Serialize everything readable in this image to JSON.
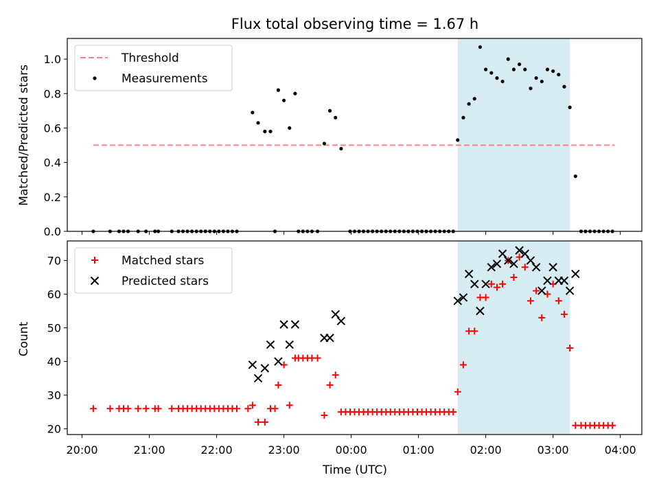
{
  "figure": {
    "title": "Flux total observing time = 1.67 h",
    "xlabel": "Time (UTC)",
    "xticks": [
      "20:00",
      "21:00",
      "22:00",
      "23:00",
      "00:00",
      "01:00",
      "02:00",
      "03:00",
      "04:00"
    ],
    "colors": {
      "threshold": "#ff8080",
      "measurement": "#000000",
      "matched": "#ff0000",
      "predicted": "#000000",
      "highlight": "#add8e6"
    }
  },
  "chart_data": [
    {
      "type": "scatter",
      "ylabel": "Matched/Predicted stars",
      "ylim": [
        0,
        1.12
      ],
      "yticks": [
        "0.0",
        "0.2",
        "0.4",
        "0.6",
        "0.8",
        "1.0"
      ],
      "xlim_hours": [
        19.78,
        28.32
      ],
      "highlight_span": [
        "01:35",
        "03:15"
      ],
      "legend": {
        "location": "upper left",
        "entries": [
          "Threshold",
          "Measurements"
        ]
      },
      "threshold": {
        "name": "Threshold",
        "value": 0.5,
        "x_range": [
          "20:10",
          "03:55"
        ]
      },
      "series": [
        {
          "name": "Measurements",
          "points": [
            [
              "20:10",
              0
            ],
            [
              "20:25",
              0
            ],
            [
              "20:33",
              0
            ],
            [
              "20:37",
              0
            ],
            [
              "20:41",
              0
            ],
            [
              "20:50",
              0
            ],
            [
              "20:57",
              0
            ],
            [
              "21:05",
              0
            ],
            [
              "21:08",
              0
            ],
            [
              "21:20",
              0
            ],
            [
              "21:26",
              0
            ],
            [
              "21:30",
              0
            ],
            [
              "21:34",
              0
            ],
            [
              "21:38",
              0
            ],
            [
              "21:42",
              0
            ],
            [
              "21:46",
              0
            ],
            [
              "21:50",
              0
            ],
            [
              "21:54",
              0
            ],
            [
              "21:58",
              0
            ],
            [
              "22:02",
              0
            ],
            [
              "22:06",
              0
            ],
            [
              "22:10",
              0
            ],
            [
              "22:14",
              0
            ],
            [
              "22:18",
              0
            ],
            [
              "22:32",
              0.69
            ],
            [
              "22:37",
              0.63
            ],
            [
              "22:43",
              0.58
            ],
            [
              "22:48",
              0.58
            ],
            [
              "22:52",
              0
            ],
            [
              "22:55",
              0.82
            ],
            [
              "23:00",
              0.76
            ],
            [
              "23:05",
              0.6
            ],
            [
              "23:10",
              0.8
            ],
            [
              "23:13",
              0
            ],
            [
              "23:17",
              0
            ],
            [
              "23:21",
              0
            ],
            [
              "23:25",
              0
            ],
            [
              "23:30",
              0
            ],
            [
              "23:36",
              0.51
            ],
            [
              "23:41",
              0.7
            ],
            [
              "23:46",
              0.66
            ],
            [
              "23:51",
              0.48
            ],
            [
              "23:59",
              0
            ],
            [
              "00:03",
              0
            ],
            [
              "00:07",
              0
            ],
            [
              "00:11",
              0
            ],
            [
              "00:15",
              0
            ],
            [
              "00:19",
              0
            ],
            [
              "00:23",
              0
            ],
            [
              "00:27",
              0
            ],
            [
              "00:31",
              0
            ],
            [
              "00:35",
              0
            ],
            [
              "00:39",
              0
            ],
            [
              "00:43",
              0
            ],
            [
              "00:47",
              0
            ],
            [
              "00:51",
              0
            ],
            [
              "00:55",
              0
            ],
            [
              "00:59",
              0
            ],
            [
              "01:03",
              0
            ],
            [
              "01:07",
              0
            ],
            [
              "01:11",
              0
            ],
            [
              "01:15",
              0
            ],
            [
              "01:19",
              0
            ],
            [
              "01:23",
              0
            ],
            [
              "01:27",
              0
            ],
            [
              "01:31",
              0
            ],
            [
              "01:35",
              0.53
            ],
            [
              "01:40",
              0.66
            ],
            [
              "01:45",
              0.74
            ],
            [
              "01:50",
              0.77
            ],
            [
              "01:55",
              1.07
            ],
            [
              "02:00",
              0.94
            ],
            [
              "02:05",
              0.92
            ],
            [
              "02:10",
              0.89
            ],
            [
              "02:15",
              0.87
            ],
            [
              "02:20",
              1.0
            ],
            [
              "02:25",
              0.94
            ],
            [
              "02:30",
              0.97
            ],
            [
              "02:35",
              0.94
            ],
            [
              "02:40",
              0.83
            ],
            [
              "02:45",
              0.89
            ],
            [
              "02:50",
              0.87
            ],
            [
              "02:55",
              0.94
            ],
            [
              "03:00",
              0.93
            ],
            [
              "03:05",
              0.91
            ],
            [
              "03:10",
              0.84
            ],
            [
              "03:15",
              0.72
            ],
            [
              "03:20",
              0.32
            ],
            [
              "03:25",
              0
            ],
            [
              "03:29",
              0
            ],
            [
              "03:33",
              0
            ],
            [
              "03:37",
              0
            ],
            [
              "03:41",
              0
            ],
            [
              "03:45",
              0
            ],
            [
              "03:49",
              0
            ],
            [
              "03:53",
              0
            ]
          ]
        }
      ]
    },
    {
      "type": "scatter",
      "ylabel": "Count",
      "ylim": [
        18.3,
        75.8
      ],
      "yticks": [
        "20",
        "30",
        "40",
        "50",
        "60",
        "70"
      ],
      "xlim_hours": [
        19.78,
        28.32
      ],
      "highlight_span": [
        "01:35",
        "03:15"
      ],
      "legend": {
        "location": "upper left",
        "entries": [
          "Matched stars",
          "Predicted stars"
        ]
      },
      "series": [
        {
          "name": "Matched stars",
          "marker": "+",
          "points": [
            [
              "20:10",
              26
            ],
            [
              "20:25",
              26
            ],
            [
              "20:33",
              26
            ],
            [
              "20:37",
              26
            ],
            [
              "20:41",
              26
            ],
            [
              "20:50",
              26
            ],
            [
              "20:57",
              26
            ],
            [
              "21:05",
              26
            ],
            [
              "21:08",
              26
            ],
            [
              "21:20",
              26
            ],
            [
              "21:26",
              26
            ],
            [
              "21:30",
              26
            ],
            [
              "21:34",
              26
            ],
            [
              "21:38",
              26
            ],
            [
              "21:42",
              26
            ],
            [
              "21:46",
              26
            ],
            [
              "21:50",
              26
            ],
            [
              "21:54",
              26
            ],
            [
              "21:58",
              26
            ],
            [
              "22:02",
              26
            ],
            [
              "22:06",
              26
            ],
            [
              "22:10",
              26
            ],
            [
              "22:14",
              26
            ],
            [
              "22:18",
              26
            ],
            [
              "22:28",
              26
            ],
            [
              "22:32",
              27
            ],
            [
              "22:37",
              22
            ],
            [
              "22:43",
              22
            ],
            [
              "22:48",
              26
            ],
            [
              "22:52",
              26
            ],
            [
              "22:55",
              33
            ],
            [
              "23:00",
              39
            ],
            [
              "23:05",
              27
            ],
            [
              "23:10",
              41
            ],
            [
              "23:13",
              41
            ],
            [
              "23:17",
              41
            ],
            [
              "23:21",
              41
            ],
            [
              "23:25",
              41
            ],
            [
              "23:30",
              41
            ],
            [
              "23:36",
              24
            ],
            [
              "23:41",
              33
            ],
            [
              "23:46",
              36
            ],
            [
              "23:51",
              25
            ],
            [
              "23:55",
              25
            ],
            [
              "23:59",
              25
            ],
            [
              "00:03",
              25
            ],
            [
              "00:07",
              25
            ],
            [
              "00:11",
              25
            ],
            [
              "00:15",
              25
            ],
            [
              "00:19",
              25
            ],
            [
              "00:23",
              25
            ],
            [
              "00:27",
              25
            ],
            [
              "00:31",
              25
            ],
            [
              "00:35",
              25
            ],
            [
              "00:39",
              25
            ],
            [
              "00:43",
              25
            ],
            [
              "00:47",
              25
            ],
            [
              "00:51",
              25
            ],
            [
              "00:55",
              25
            ],
            [
              "00:59",
              25
            ],
            [
              "01:03",
              25
            ],
            [
              "01:07",
              25
            ],
            [
              "01:11",
              25
            ],
            [
              "01:15",
              25
            ],
            [
              "01:19",
              25
            ],
            [
              "01:23",
              25
            ],
            [
              "01:27",
              25
            ],
            [
              "01:31",
              25
            ],
            [
              "01:35",
              31
            ],
            [
              "01:40",
              39
            ],
            [
              "01:45",
              49
            ],
            [
              "01:50",
              49
            ],
            [
              "01:55",
              59
            ],
            [
              "02:00",
              59
            ],
            [
              "02:05",
              63
            ],
            [
              "02:10",
              62
            ],
            [
              "02:15",
              63
            ],
            [
              "02:20",
              70
            ],
            [
              "02:25",
              65
            ],
            [
              "02:30",
              71
            ],
            [
              "02:35",
              68
            ],
            [
              "02:40",
              58
            ],
            [
              "02:45",
              61
            ],
            [
              "02:50",
              53
            ],
            [
              "02:55",
              60
            ],
            [
              "03:00",
              63
            ],
            [
              "03:05",
              58
            ],
            [
              "03:10",
              54
            ],
            [
              "03:15",
              44
            ],
            [
              "03:20",
              21
            ],
            [
              "03:25",
              21
            ],
            [
              "03:29",
              21
            ],
            [
              "03:33",
              21
            ],
            [
              "03:37",
              21
            ],
            [
              "03:41",
              21
            ],
            [
              "03:45",
              21
            ],
            [
              "03:49",
              21
            ],
            [
              "03:53",
              21
            ]
          ]
        },
        {
          "name": "Predicted stars",
          "marker": "x",
          "points": [
            [
              "22:32",
              39
            ],
            [
              "22:37",
              35
            ],
            [
              "22:43",
              38
            ],
            [
              "22:48",
              45
            ],
            [
              "22:55",
              40
            ],
            [
              "23:00",
              51
            ],
            [
              "23:05",
              45
            ],
            [
              "23:10",
              51
            ],
            [
              "23:36",
              47
            ],
            [
              "23:41",
              47
            ],
            [
              "23:46",
              54
            ],
            [
              "23:51",
              52
            ],
            [
              "01:35",
              58
            ],
            [
              "01:40",
              59
            ],
            [
              "01:45",
              66
            ],
            [
              "01:50",
              63
            ],
            [
              "01:55",
              55
            ],
            [
              "02:00",
              63
            ],
            [
              "02:05",
              68
            ],
            [
              "02:10",
              69
            ],
            [
              "02:15",
              72
            ],
            [
              "02:20",
              70
            ],
            [
              "02:25",
              69
            ],
            [
              "02:30",
              73
            ],
            [
              "02:35",
              72
            ],
            [
              "02:40",
              70
            ],
            [
              "02:45",
              68
            ],
            [
              "02:50",
              61
            ],
            [
              "02:55",
              64
            ],
            [
              "03:00",
              68
            ],
            [
              "03:05",
              64
            ],
            [
              "03:10",
              64
            ],
            [
              "03:15",
              61
            ],
            [
              "03:20",
              66
            ]
          ]
        }
      ]
    }
  ]
}
